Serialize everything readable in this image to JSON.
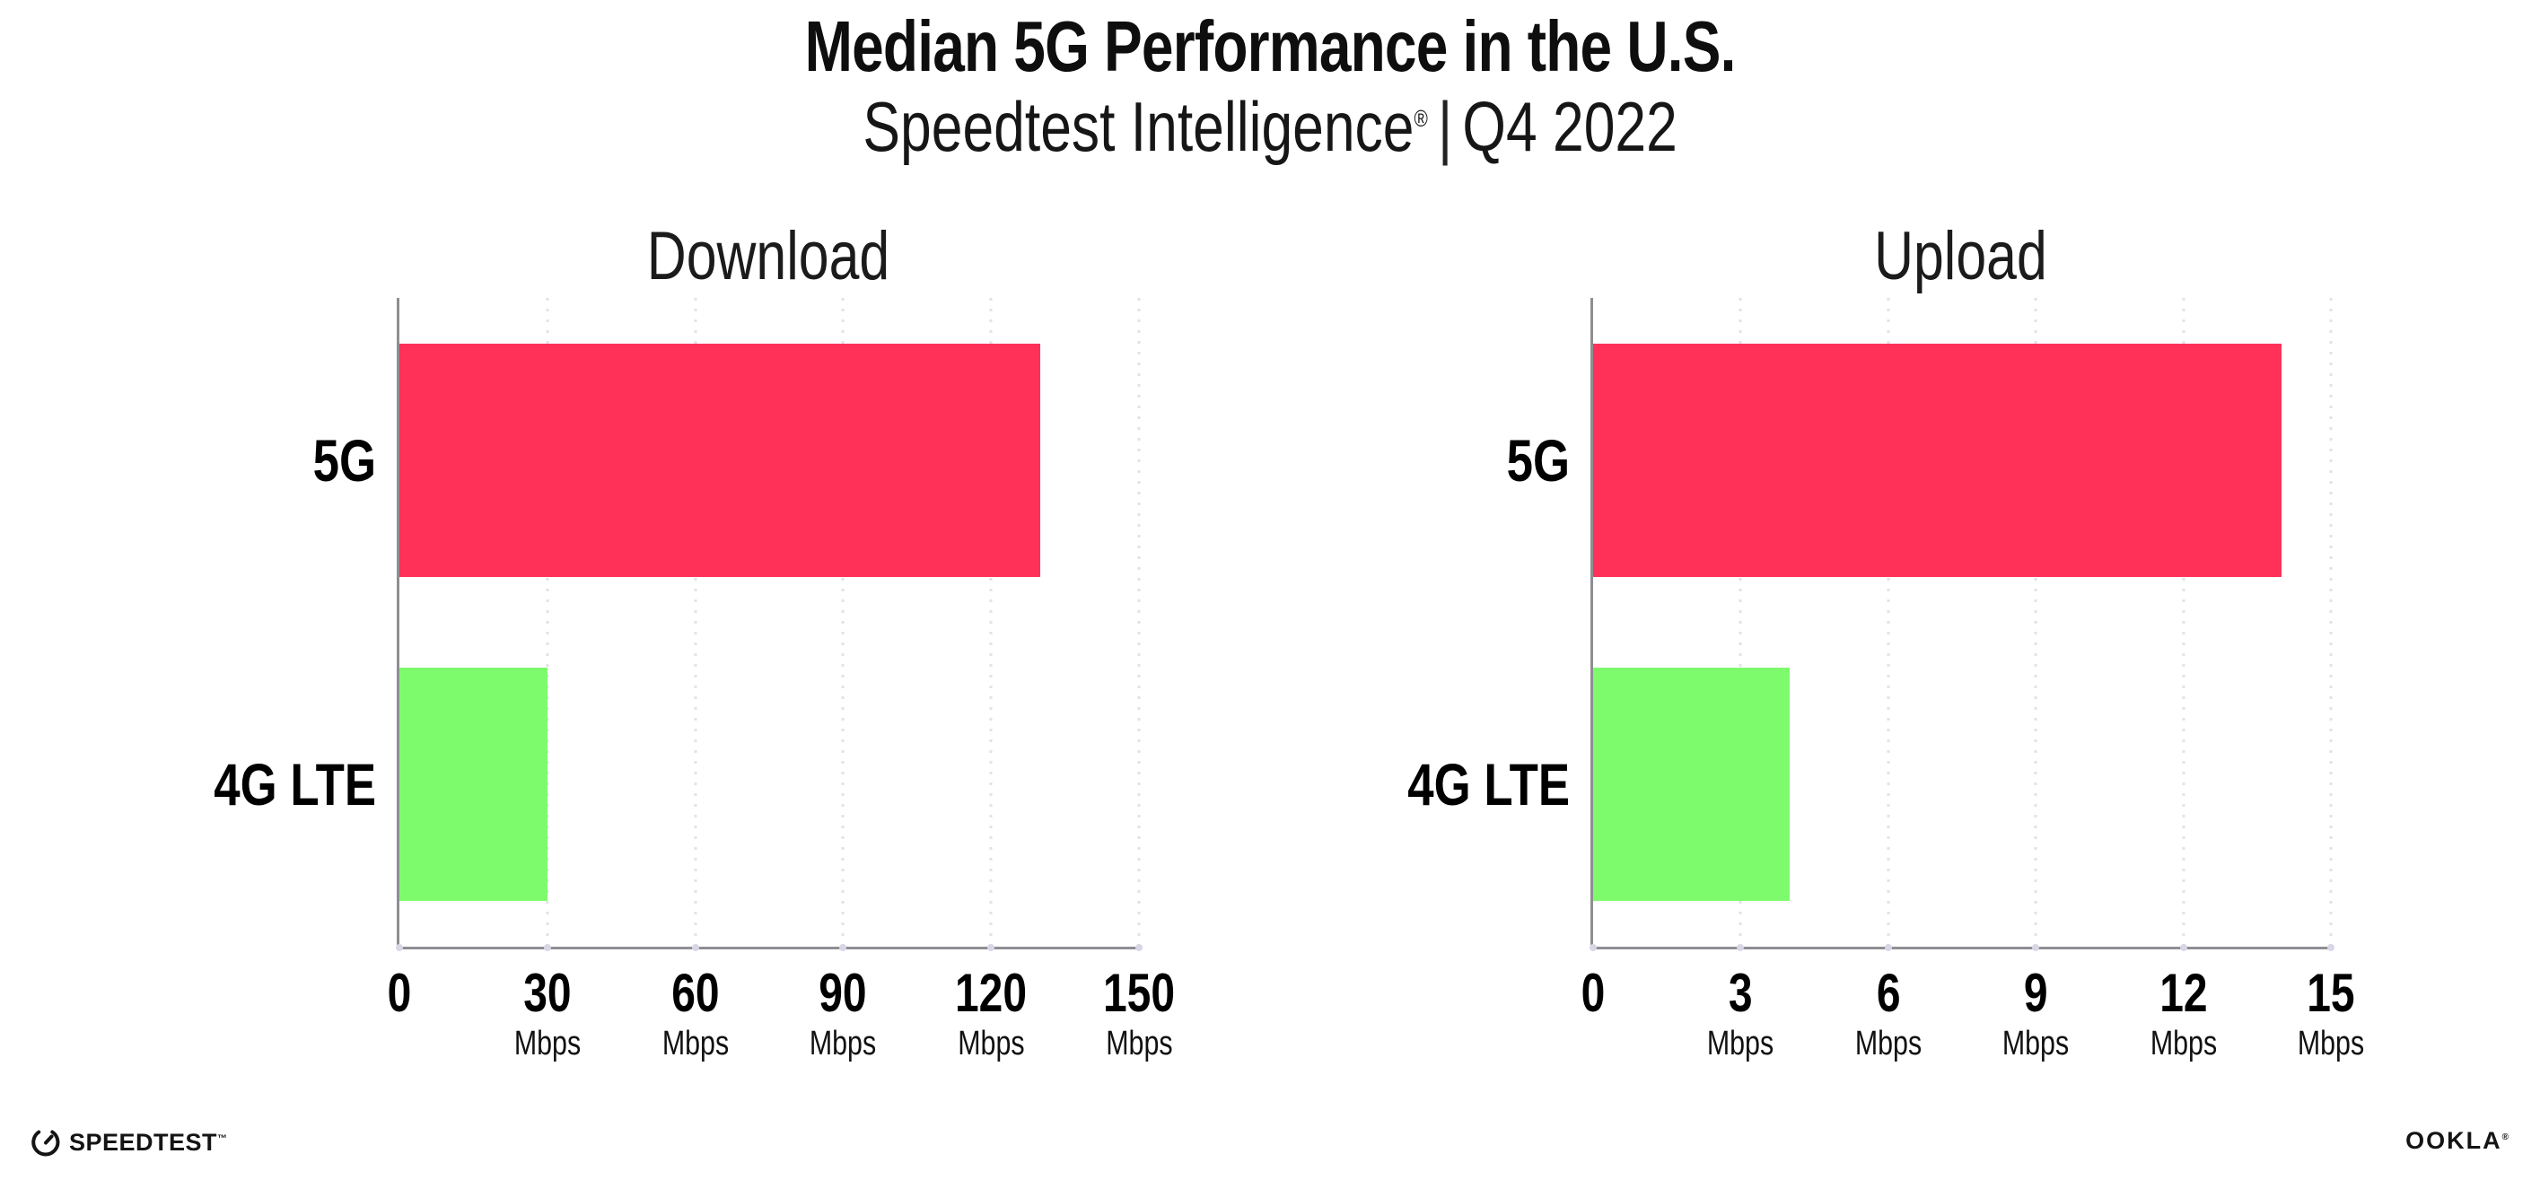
{
  "title": "Median 5G Performance in the U.S.",
  "subtitle": {
    "brand": "Speedtest Intelligence",
    "reg": "®",
    "separator": "|",
    "period": "Q4 2022"
  },
  "footer": {
    "speedtest_icon": "gauge-icon",
    "speedtest_label": "SPEEDTEST",
    "speedtest_tm": "™",
    "ookla_label": "OOKLA",
    "ookla_reg": "®"
  },
  "colors": {
    "bar_5g": "#ff3158",
    "bar_4g": "#7efb6d",
    "axis": "#8e8e93",
    "gridline": "#e2e2ee",
    "tick_dot": "#d7d7e6"
  },
  "chart_data": [
    {
      "type": "bar",
      "orientation": "horizontal",
      "title": "Download",
      "categories": [
        "5G",
        "4G LTE"
      ],
      "values": [
        130,
        30
      ],
      "unit": "Mbps",
      "series_colors": [
        "#ff3158",
        "#7efb6d"
      ],
      "xlim": [
        0,
        150
      ],
      "xticks": [
        0,
        30,
        60,
        90,
        120,
        150
      ],
      "grid": "vertical-dotted",
      "legend": "none"
    },
    {
      "type": "bar",
      "orientation": "horizontal",
      "title": "Upload",
      "categories": [
        "5G",
        "4G LTE"
      ],
      "values": [
        14,
        4
      ],
      "unit": "Mbps",
      "series_colors": [
        "#ff3158",
        "#7efb6d"
      ],
      "xlim": [
        0,
        15
      ],
      "xticks": [
        0,
        3,
        6,
        9,
        12,
        15
      ],
      "grid": "vertical-dotted",
      "legend": "none"
    }
  ]
}
